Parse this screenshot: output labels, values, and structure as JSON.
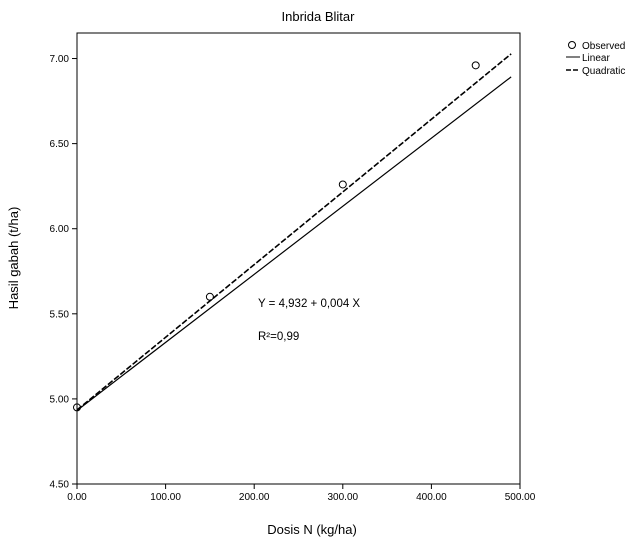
{
  "chart_data": {
    "type": "scatter",
    "title": "Inbrida Blitar",
    "xlabel": "Dosis N  (kg/ha)",
    "ylabel": "Hasil gabah (t/ha)",
    "xlim": [
      0,
      500
    ],
    "ylim": [
      4.5,
      7.15
    ],
    "x_ticks": [
      "0.00",
      "100.00",
      "200.00",
      "300.00",
      "400.00",
      "500.00"
    ],
    "y_ticks": [
      "4.50",
      "5.00",
      "5.50",
      "6.00",
      "6.50",
      "7.00"
    ],
    "grid": false,
    "legend_position": "top-right",
    "legend": [
      "Observed",
      "Linear",
      "Quadratic"
    ],
    "series": [
      {
        "name": "Observed",
        "style": "open-circle",
        "x": [
          0,
          150,
          300,
          450
        ],
        "y": [
          4.95,
          5.6,
          6.26,
          6.96
        ]
      },
      {
        "name": "Linear",
        "style": "solid-line",
        "intercept": 4.932,
        "slope": 0.004,
        "x_range": [
          0,
          490
        ]
      },
      {
        "name": "Quadratic",
        "style": "dashed-line",
        "intercept": 4.935,
        "slope": 0.00427,
        "x_range": [
          0,
          490
        ]
      }
    ],
    "annotations": [
      "Y = 4,932 + 0,004 X",
      "R²=0,99"
    ]
  }
}
